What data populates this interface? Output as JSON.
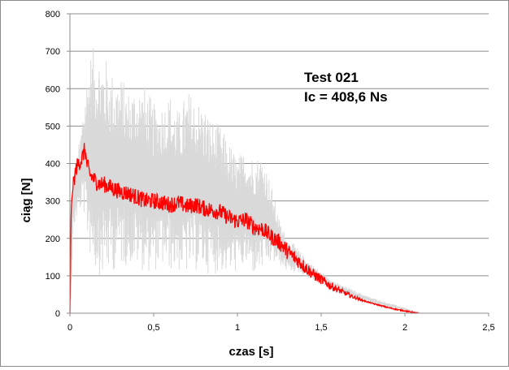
{
  "chart_data": {
    "type": "line",
    "title": "",
    "xlabel": "czas [s]",
    "ylabel": "ciąg [N]",
    "xlim": [
      0,
      2.5
    ],
    "ylim": [
      0,
      800
    ],
    "x_ticks": [
      0,
      0.5,
      1,
      1.5,
      2,
      2.5
    ],
    "x_tick_labels": [
      "0",
      "0,5",
      "1",
      "1,5",
      "2",
      "2,5"
    ],
    "y_ticks": [
      0,
      100,
      200,
      300,
      400,
      500,
      600,
      700,
      800
    ],
    "y_tick_labels": [
      "0",
      "100",
      "200",
      "300",
      "400",
      "500",
      "600",
      "700",
      "800"
    ],
    "grid": {
      "horizontal": true,
      "vertical": false
    },
    "legend": "none",
    "annotations": [
      "Test 021",
      "Ic = 408,6 Ns"
    ],
    "series": [
      {
        "style": "raw",
        "color": "#d9d9d9",
        "x": [
          0,
          0.01,
          0.02,
          0.04,
          0.06,
          0.08,
          0.1,
          0.12,
          0.15,
          0.2,
          0.25,
          0.3,
          0.35,
          0.4,
          0.45,
          0.5,
          0.55,
          0.6,
          0.65,
          0.7,
          0.75,
          0.8,
          0.85,
          0.9,
          0.95,
          1.0,
          1.05,
          1.1,
          1.15,
          1.2,
          1.25,
          1.3,
          1.35,
          1.4,
          1.5,
          1.6,
          1.7,
          1.8,
          1.9,
          2.0,
          2.05,
          2.08
        ],
        "low": [
          0,
          80,
          220,
          250,
          270,
          280,
          200,
          150,
          110,
          90,
          110,
          120,
          130,
          120,
          110,
          110,
          120,
          110,
          110,
          100,
          110,
          110,
          100,
          110,
          100,
          110,
          120,
          100,
          110,
          130,
          130,
          110,
          110,
          100,
          75,
          58,
          40,
          28,
          16,
          7,
          2,
          0
        ],
        "high": [
          0,
          300,
          360,
          420,
          470,
          560,
          640,
          700,
          715,
          700,
          650,
          640,
          600,
          620,
          610,
          560,
          570,
          590,
          540,
          600,
          580,
          560,
          520,
          500,
          460,
          420,
          440,
          420,
          430,
          350,
          250,
          200,
          180,
          150,
          110,
          80,
          60,
          42,
          28,
          15,
          6,
          0
        ]
      },
      {
        "style": "filtered",
        "color": "#ff0000",
        "x": [
          0,
          0.003,
          0.006,
          0.01,
          0.015,
          0.02,
          0.03,
          0.04,
          0.05,
          0.06,
          0.07,
          0.08,
          0.09,
          0.1,
          0.12,
          0.14,
          0.16,
          0.18,
          0.2,
          0.25,
          0.3,
          0.35,
          0.4,
          0.45,
          0.5,
          0.55,
          0.6,
          0.65,
          0.7,
          0.75,
          0.8,
          0.85,
          0.9,
          0.95,
          1.0,
          1.05,
          1.1,
          1.15,
          1.2,
          1.25,
          1.3,
          1.35,
          1.4,
          1.45,
          1.5,
          1.55,
          1.6,
          1.65,
          1.7,
          1.75,
          1.8,
          1.85,
          1.9,
          1.95,
          2.0,
          2.05,
          2.08
        ],
        "y": [
          0,
          100,
          240,
          300,
          320,
          340,
          370,
          390,
          400,
          405,
          410,
          425,
          440,
          400,
          370,
          360,
          350,
          345,
          345,
          335,
          325,
          320,
          310,
          300,
          300,
          295,
          290,
          295,
          285,
          290,
          280,
          275,
          270,
          255,
          245,
          250,
          230,
          225,
          205,
          190,
          165,
          145,
          125,
          105,
          90,
          75,
          63,
          52,
          42,
          34,
          27,
          21,
          15,
          10,
          6,
          2,
          0
        ]
      }
    ]
  }
}
